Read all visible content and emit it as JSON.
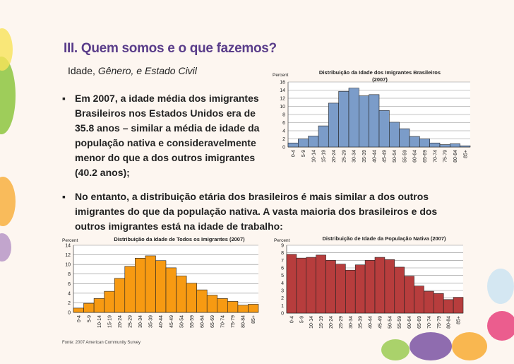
{
  "slide": {
    "title": "III. Quem somos e o que fazemos?",
    "subtitle_plain": "Idade, ",
    "subtitle_italic": "Gênero, e Estado Civil",
    "bullet_marker": "▪",
    "bullet1": "Em 2007, a idade média dos imigrantes Brasileiros nos Estados Unidos era de 35.8 anos – similar a média de idade da população nativa e consideravelmente menor do que a dos outros imigrantes (40.2 anos);",
    "bullet2": "No entanto, a distribuição etária dos brasileiros é mais similar a dos outros  imigrantes do que da população nativa. A vasta maioria dos brasileiros e dos outros imigrantes está na idade de trabalho:",
    "source": "Fonte: 2007 American Community Survey"
  },
  "colors": {
    "title": "#5a3d8a",
    "brazilian_bars": "#7b9cc9",
    "all_immigrants_bars": "#f79a12",
    "native_bars": "#b73d3d"
  },
  "chart_data": [
    {
      "type": "bar",
      "title": "Distribuição da Idade dos Imigrantes Brasileiros (2007)",
      "ylabel": "Percent",
      "xlabel": "",
      "ylim": [
        0,
        16
      ],
      "yticks": [
        0,
        2,
        4,
        6,
        8,
        10,
        12,
        14,
        16
      ],
      "categories": [
        "0-4",
        "5-9",
        "10-14",
        "15-19",
        "20-24",
        "25-29",
        "30-34",
        "35-39",
        "40-44",
        "45-49",
        "50-54",
        "55-59",
        "60-64",
        "65-69",
        "70-74",
        "75-79",
        "80-84",
        "85+"
      ],
      "values": [
        1.0,
        2.0,
        2.7,
        5.2,
        10.8,
        13.7,
        14.5,
        12.6,
        12.9,
        9.0,
        6.1,
        4.5,
        2.6,
        2.0,
        1.0,
        0.6,
        0.8,
        0.3
      ],
      "grid": true
    },
    {
      "type": "bar",
      "title": "Distribuição da Idade de Todos os Imigrantes (2007)",
      "ylabel": "Percent",
      "xlabel": "",
      "ylim": [
        0,
        14
      ],
      "yticks": [
        0,
        2,
        4,
        6,
        8,
        10,
        12,
        14
      ],
      "categories": [
        "0-4",
        "5-9",
        "10-14",
        "15-19",
        "20-24",
        "25-29",
        "30-34",
        "35-39",
        "40-44",
        "45-49",
        "50-54",
        "55-59",
        "60-64",
        "65-69",
        "70-74",
        "75-79",
        "80-84",
        "85+"
      ],
      "values": [
        0.9,
        1.9,
        2.9,
        4.4,
        7.1,
        9.6,
        11.3,
        11.8,
        10.8,
        9.3,
        7.6,
        6.1,
        4.7,
        3.6,
        2.9,
        2.3,
        1.5,
        1.7
      ],
      "grid": true
    },
    {
      "type": "bar",
      "title": "Distribuição de Idade da População Nativa (2007)",
      "ylabel": "Percent",
      "xlabel": "",
      "ylim": [
        0,
        9
      ],
      "yticks": [
        0,
        1,
        2,
        3,
        4,
        5,
        6,
        7,
        8,
        9
      ],
      "categories": [
        "0-4",
        "5-9",
        "10-14",
        "15-19",
        "20-24",
        "25-29",
        "30-34",
        "35-39",
        "40-44",
        "45-49",
        "50-54",
        "55-59",
        "60-64",
        "65-69",
        "70-74",
        "75-79",
        "80-84",
        "85+"
      ],
      "values": [
        7.8,
        7.3,
        7.4,
        7.7,
        7.0,
        6.5,
        5.7,
        6.4,
        7.0,
        7.4,
        7.1,
        6.1,
        4.9,
        3.6,
        2.9,
        2.6,
        1.8,
        2.1
      ],
      "grid": true
    }
  ]
}
